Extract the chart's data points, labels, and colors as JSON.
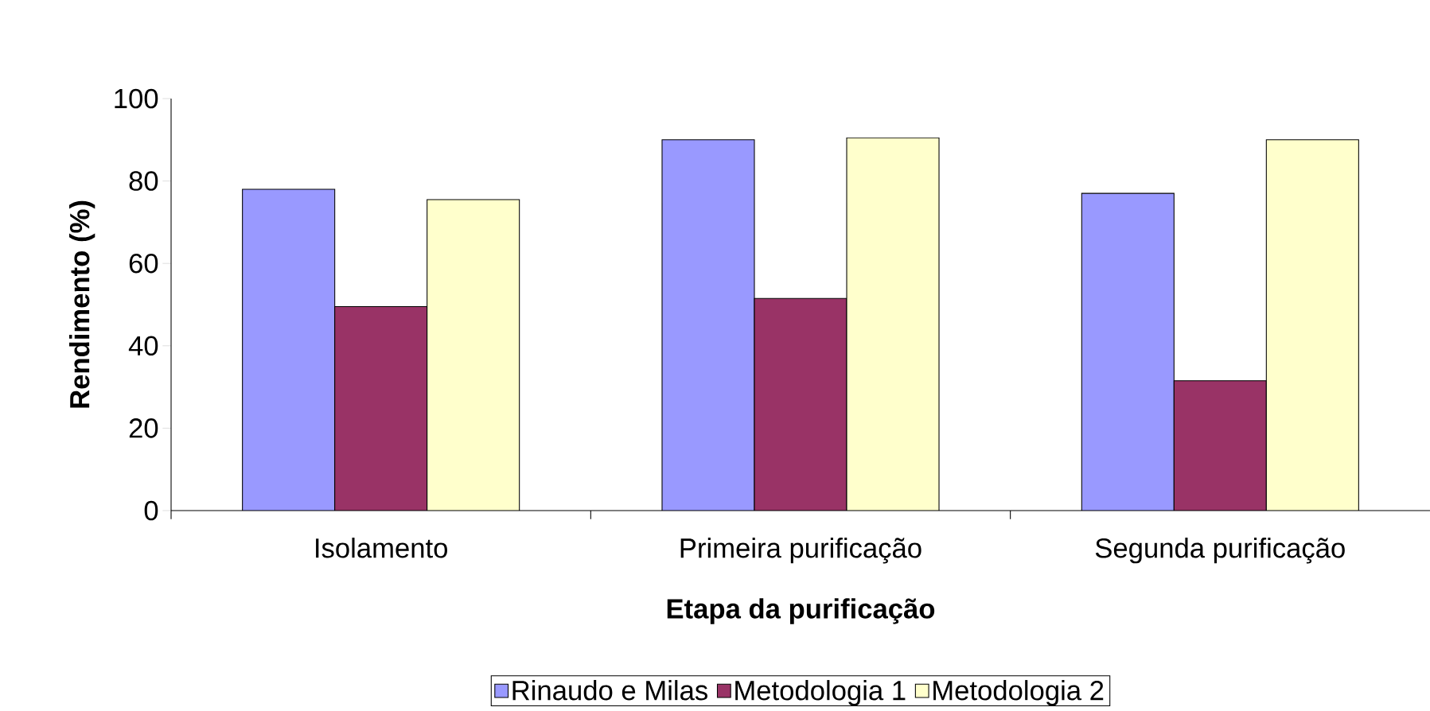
{
  "chart_data": {
    "type": "bar",
    "xlabel": "Etapa da purificação",
    "ylabel": "Rendimento (%)",
    "categories": [
      "Isolamento",
      "Primeira purificação",
      "Segunda purificação"
    ],
    "series": [
      {
        "name": "Rinaudo e Milas",
        "color": "#9999ff",
        "values": [
          78,
          90,
          77
        ]
      },
      {
        "name": "Metodologia 1",
        "color": "#993366",
        "values": [
          49.5,
          51.5,
          31.5
        ]
      },
      {
        "name": "Metodologia 2",
        "color": "#ffffcc",
        "values": [
          75.5,
          90.5,
          90
        ]
      }
    ],
    "ylim": [
      0,
      100
    ],
    "yticks": [
      0,
      20,
      40,
      60,
      80,
      100
    ],
    "legend": "bottom"
  }
}
